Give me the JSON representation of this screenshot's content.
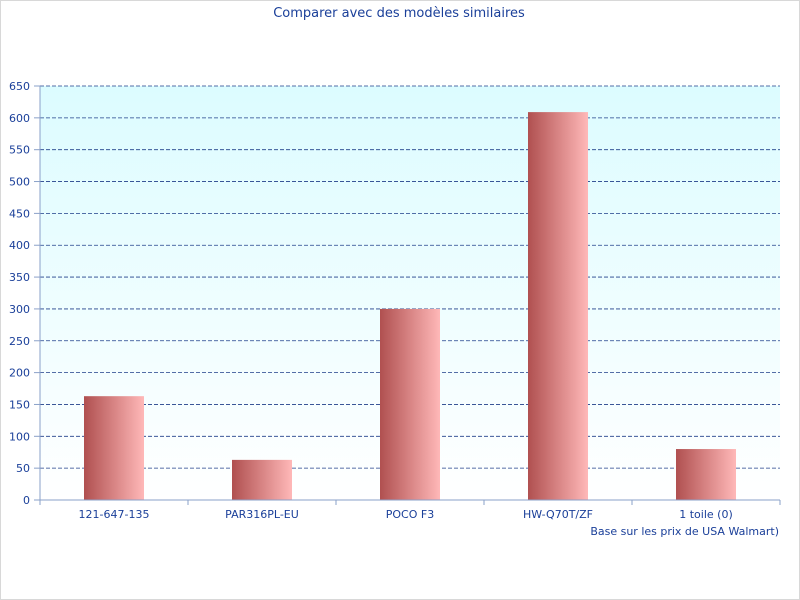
{
  "chart_data": {
    "type": "bar",
    "title": "Comparer avec des modèles similaires",
    "categories": [
      "121-647-135",
      "PAR316PL-EU",
      "POCO F3",
      "HW-Q70T/ZF",
      "1 toile (0)"
    ],
    "values": [
      163,
      63,
      300,
      609,
      80
    ],
    "ylim": [
      0,
      650
    ],
    "yticks": [
      0,
      50,
      100,
      150,
      200,
      250,
      300,
      350,
      400,
      450,
      500,
      550,
      600,
      650
    ],
    "grid": true,
    "xlabel": "",
    "ylabel": "",
    "note": "Base sur les prix de USA Walmart)",
    "colors": {
      "bar_dark": "#b05050",
      "bar_light": "#ffb8b8",
      "plot_bg_top": "#dcfcff",
      "plot_bg_bottom": "#ffffff",
      "grid": "#1f3f8a",
      "axis": "#8aa0c8",
      "text": "#1a3f99"
    }
  }
}
